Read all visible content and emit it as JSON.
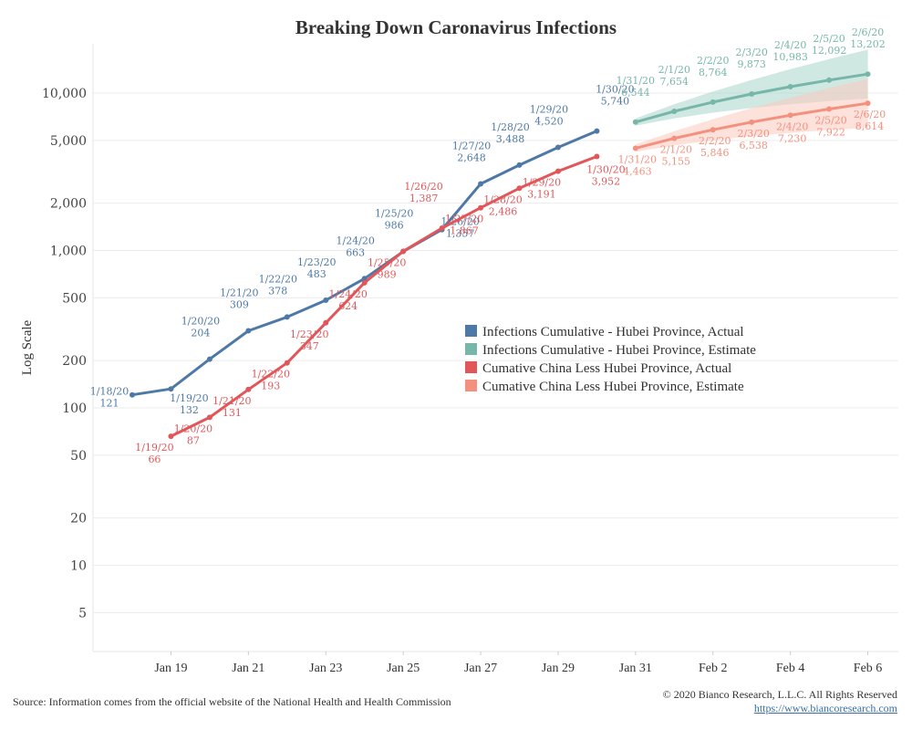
{
  "chart_data": {
    "type": "line",
    "title": "Breaking Down Caronavirus Infections",
    "ylabel": "Log Scale",
    "xlabel": "",
    "y_scale": "log",
    "ylim": [
      3,
      18000
    ],
    "y_ticks": [
      {
        "value": 5,
        "label": "5"
      },
      {
        "value": 10,
        "label": "10"
      },
      {
        "value": 20,
        "label": "20"
      },
      {
        "value": 50,
        "label": "50"
      },
      {
        "value": 100,
        "label": "100"
      },
      {
        "value": 200,
        "label": "200"
      },
      {
        "value": 500,
        "label": "500"
      },
      {
        "value": 1000,
        "label": "1,000"
      },
      {
        "value": 2000,
        "label": "2,000"
      },
      {
        "value": 5000,
        "label": "5,000"
      },
      {
        "value": 10000,
        "label": "10,000"
      }
    ],
    "x_ticks": [
      {
        "date": "2020-01-19",
        "label": "Jan 19"
      },
      {
        "date": "2020-01-21",
        "label": "Jan 21"
      },
      {
        "date": "2020-01-23",
        "label": "Jan 23"
      },
      {
        "date": "2020-01-25",
        "label": "Jan 25"
      },
      {
        "date": "2020-01-27",
        "label": "Jan 27"
      },
      {
        "date": "2020-01-29",
        "label": "Jan 29"
      },
      {
        "date": "2020-01-31",
        "label": "Jan 31"
      },
      {
        "date": "2020-02-02",
        "label": "Feb 2"
      },
      {
        "date": "2020-02-04",
        "label": "Feb 4"
      },
      {
        "date": "2020-02-06",
        "label": "Feb 6"
      }
    ],
    "grid": true,
    "legend_position": "center-right",
    "series": [
      {
        "name": "Infections Cumulative - Hubei Province, Actual",
        "color": "#4e79a7",
        "points": [
          {
            "date": "2020-01-18",
            "label": "1/18/20",
            "value": 121,
            "value_label": "121"
          },
          {
            "date": "2020-01-19",
            "label": "1/19/20",
            "value": 132,
            "value_label": "132"
          },
          {
            "date": "2020-01-20",
            "label": "1/20/20",
            "value": 204,
            "value_label": "204"
          },
          {
            "date": "2020-01-21",
            "label": "1/21/20",
            "value": 309,
            "value_label": "309"
          },
          {
            "date": "2020-01-22",
            "label": "1/22/20",
            "value": 378,
            "value_label": "378"
          },
          {
            "date": "2020-01-23",
            "label": "1/23/20",
            "value": 483,
            "value_label": "483"
          },
          {
            "date": "2020-01-24",
            "label": "1/24/20",
            "value": 663,
            "value_label": "663"
          },
          {
            "date": "2020-01-25",
            "label": "1/25/20",
            "value": 986,
            "value_label": "986"
          },
          {
            "date": "2020-01-26",
            "label": "1/26/20",
            "value": 1357,
            "value_label": "1,357"
          },
          {
            "date": "2020-01-27",
            "label": "1/27/20",
            "value": 2648,
            "value_label": "2,648"
          },
          {
            "date": "2020-01-28",
            "label": "1/28/20",
            "value": 3488,
            "value_label": "3,488"
          },
          {
            "date": "2020-01-29",
            "label": "1/29/20",
            "value": 4520,
            "value_label": "4,520"
          },
          {
            "date": "2020-01-30",
            "label": "1/30/20",
            "value": 5740,
            "value_label": "5,740"
          }
        ]
      },
      {
        "name": "Infections Cumulative - Hubei Province, Estimate",
        "color": "#76b7a9",
        "band_color": "#a9d5cb",
        "points": [
          {
            "date": "2020-01-31",
            "label": "1/31/20",
            "value": 6544,
            "value_label": "6,544"
          },
          {
            "date": "2020-02-01",
            "label": "2/1/20",
            "value": 7654,
            "value_label": "7,654"
          },
          {
            "date": "2020-02-02",
            "label": "2/2/20",
            "value": 8764,
            "value_label": "8,764"
          },
          {
            "date": "2020-02-03",
            "label": "2/3/20",
            "value": 9873,
            "value_label": "9,873"
          },
          {
            "date": "2020-02-04",
            "label": "2/4/20",
            "value": 10983,
            "value_label": "10,983"
          },
          {
            "date": "2020-02-05",
            "label": "2/5/20",
            "value": 12092,
            "value_label": "12,092"
          },
          {
            "date": "2020-02-06",
            "label": "2/6/20",
            "value": 13202,
            "value_label": "13,202"
          }
        ]
      },
      {
        "name": "Cumative China Less Hubei Province, Actual",
        "color": "#e15759",
        "points": [
          {
            "date": "2020-01-19",
            "label": "1/19/20",
            "value": 66,
            "value_label": "66"
          },
          {
            "date": "2020-01-20",
            "label": "1/20/20",
            "value": 87,
            "value_label": "87"
          },
          {
            "date": "2020-01-21",
            "label": "1/21/20",
            "value": 131,
            "value_label": "131"
          },
          {
            "date": "2020-01-22",
            "label": "1/22/20",
            "value": 193,
            "value_label": "193"
          },
          {
            "date": "2020-01-23",
            "label": "1/23/20",
            "value": 347,
            "value_label": "347"
          },
          {
            "date": "2020-01-24",
            "label": "1/24/20",
            "value": 624,
            "value_label": "624"
          },
          {
            "date": "2020-01-25",
            "label": "1/25/20",
            "value": 989,
            "value_label": "989"
          },
          {
            "date": "2020-01-26",
            "label": "1/26/20",
            "value": 1387,
            "value_label": "1,387"
          },
          {
            "date": "2020-01-27",
            "label": "1/27/20",
            "value": 1867,
            "value_label": "1,867"
          },
          {
            "date": "2020-01-28",
            "label": "1/28/20",
            "value": 2486,
            "value_label": "2,486"
          },
          {
            "date": "2020-01-29",
            "label": "1/29/20",
            "value": 3191,
            "value_label": "3,191"
          },
          {
            "date": "2020-01-30",
            "label": "1/30/20",
            "value": 3952,
            "value_label": "3,952"
          }
        ]
      },
      {
        "name": "Cumative China Less Hubei Province, Estimate",
        "color": "#f4907e",
        "band_color": "#fbc9bd",
        "points": [
          {
            "date": "2020-01-31",
            "label": "1/31/20",
            "value": 4463,
            "value_label": "4,463"
          },
          {
            "date": "2020-02-01",
            "label": "2/1/20",
            "value": 5155,
            "value_label": "5,155"
          },
          {
            "date": "2020-02-02",
            "label": "2/2/20",
            "value": 5846,
            "value_label": "5,846"
          },
          {
            "date": "2020-02-03",
            "label": "2/3/20",
            "value": 6538,
            "value_label": "6,538"
          },
          {
            "date": "2020-02-04",
            "label": "2/4/20",
            "value": 7230,
            "value_label": "7,230"
          },
          {
            "date": "2020-02-05",
            "label": "2/5/20",
            "value": 7922,
            "value_label": "7,922"
          },
          {
            "date": "2020-02-06",
            "label": "2/6/20",
            "value": 8614,
            "value_label": "8,614"
          }
        ]
      }
    ]
  },
  "footer": {
    "source": "Source: Information comes from the official website of the National Health and Health Commission",
    "copyright": "© 2020 Bianco Research, L.L.C. All Rights Reserved",
    "url": "https://www.biancoresearch.com"
  }
}
